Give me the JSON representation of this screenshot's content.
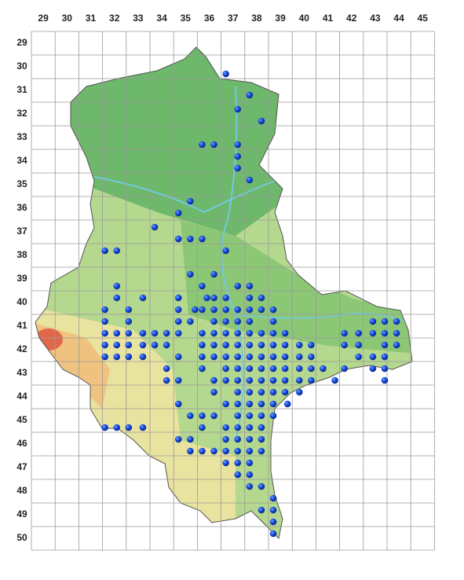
{
  "column_labels": [
    "29",
    "30",
    "31",
    "32",
    "33",
    "34",
    "35",
    "36",
    "37",
    "38",
    "39",
    "40",
    "41",
    "42",
    "43",
    "44",
    "45"
  ],
  "row_labels": [
    "29",
    "30",
    "31",
    "32",
    "33",
    "34",
    "35",
    "36",
    "37",
    "38",
    "39",
    "40",
    "41",
    "42",
    "43",
    "44",
    "45",
    "46",
    "47",
    "48",
    "49",
    "50"
  ],
  "points": [
    [
      37.2,
      30.8
    ],
    [
      38.2,
      31.7
    ],
    [
      37.7,
      32.3
    ],
    [
      38.7,
      32.8
    ],
    [
      36.2,
      33.8
    ],
    [
      36.7,
      33.8
    ],
    [
      37.7,
      33.8
    ],
    [
      37.7,
      34.3
    ],
    [
      37.7,
      34.8
    ],
    [
      38.2,
      35.3
    ],
    [
      35.7,
      36.2
    ],
    [
      35.2,
      36.7
    ],
    [
      34.2,
      37.3
    ],
    [
      35.2,
      37.8
    ],
    [
      35.7,
      37.8
    ],
    [
      36.2,
      37.8
    ],
    [
      32.1,
      38.3
    ],
    [
      32.6,
      38.3
    ],
    [
      37.2,
      38.3
    ],
    [
      35.7,
      39.3
    ],
    [
      36.7,
      39.3
    ],
    [
      32.6,
      39.8
    ],
    [
      36.2,
      39.8
    ],
    [
      37.7,
      39.8
    ],
    [
      38.2,
      39.8
    ],
    [
      32.6,
      40.3
    ],
    [
      33.7,
      40.3
    ],
    [
      35.2,
      40.3
    ],
    [
      36.4,
      40.3
    ],
    [
      36.7,
      40.3
    ],
    [
      37.2,
      40.3
    ],
    [
      38.2,
      40.3
    ],
    [
      38.7,
      40.3
    ],
    [
      32.1,
      40.8
    ],
    [
      33.1,
      40.8
    ],
    [
      35.2,
      40.8
    ],
    [
      35.9,
      40.8
    ],
    [
      36.2,
      40.8
    ],
    [
      36.7,
      40.8
    ],
    [
      37.2,
      40.8
    ],
    [
      37.7,
      40.8
    ],
    [
      38.2,
      40.8
    ],
    [
      38.7,
      40.8
    ],
    [
      39.2,
      40.8
    ],
    [
      32.1,
      41.3
    ],
    [
      33.1,
      41.3
    ],
    [
      35.2,
      41.3
    ],
    [
      35.7,
      41.3
    ],
    [
      36.7,
      41.3
    ],
    [
      37.2,
      41.3
    ],
    [
      37.7,
      41.3
    ],
    [
      38.2,
      41.3
    ],
    [
      39.2,
      41.3
    ],
    [
      43.4,
      41.3
    ],
    [
      43.9,
      41.3
    ],
    [
      44.4,
      41.3
    ],
    [
      32.1,
      41.8
    ],
    [
      32.6,
      41.8
    ],
    [
      33.1,
      41.8
    ],
    [
      33.7,
      41.8
    ],
    [
      34.2,
      41.8
    ],
    [
      34.7,
      41.8
    ],
    [
      35.2,
      41.8
    ],
    [
      36.2,
      41.8
    ],
    [
      36.7,
      41.8
    ],
    [
      37.2,
      41.8
    ],
    [
      37.7,
      41.8
    ],
    [
      38.2,
      41.8
    ],
    [
      38.7,
      41.8
    ],
    [
      39.2,
      41.8
    ],
    [
      39.7,
      41.8
    ],
    [
      42.2,
      41.8
    ],
    [
      42.8,
      41.8
    ],
    [
      43.4,
      41.8
    ],
    [
      43.9,
      41.8
    ],
    [
      44.4,
      41.8
    ],
    [
      32.1,
      42.3
    ],
    [
      32.6,
      42.3
    ],
    [
      33.1,
      42.3
    ],
    [
      33.7,
      42.3
    ],
    [
      34.2,
      42.3
    ],
    [
      34.7,
      42.3
    ],
    [
      36.2,
      42.3
    ],
    [
      36.7,
      42.3
    ],
    [
      37.2,
      42.3
    ],
    [
      37.7,
      42.3
    ],
    [
      38.2,
      42.3
    ],
    [
      38.7,
      42.3
    ],
    [
      39.2,
      42.3
    ],
    [
      39.7,
      42.3
    ],
    [
      40.3,
      42.3
    ],
    [
      40.8,
      42.3
    ],
    [
      42.2,
      42.3
    ],
    [
      42.8,
      42.3
    ],
    [
      43.9,
      42.3
    ],
    [
      44.4,
      42.3
    ],
    [
      32.1,
      42.8
    ],
    [
      32.6,
      42.8
    ],
    [
      33.1,
      42.8
    ],
    [
      33.7,
      42.8
    ],
    [
      35.2,
      42.8
    ],
    [
      36.2,
      42.8
    ],
    [
      36.7,
      42.8
    ],
    [
      37.2,
      42.8
    ],
    [
      37.7,
      42.8
    ],
    [
      38.2,
      42.8
    ],
    [
      38.7,
      42.8
    ],
    [
      39.2,
      42.8
    ],
    [
      39.7,
      42.8
    ],
    [
      40.3,
      42.8
    ],
    [
      40.8,
      42.8
    ],
    [
      42.8,
      42.8
    ],
    [
      43.4,
      42.8
    ],
    [
      43.9,
      42.8
    ],
    [
      34.7,
      43.3
    ],
    [
      36.2,
      43.3
    ],
    [
      37.2,
      43.3
    ],
    [
      37.7,
      43.3
    ],
    [
      38.2,
      43.3
    ],
    [
      38.7,
      43.3
    ],
    [
      39.2,
      43.3
    ],
    [
      39.7,
      43.3
    ],
    [
      40.3,
      43.3
    ],
    [
      40.8,
      43.3
    ],
    [
      41.3,
      43.3
    ],
    [
      42.2,
      43.3
    ],
    [
      43.4,
      43.3
    ],
    [
      43.9,
      43.3
    ],
    [
      34.7,
      43.8
    ],
    [
      35.2,
      43.8
    ],
    [
      36.7,
      43.8
    ],
    [
      37.2,
      43.8
    ],
    [
      37.7,
      43.8
    ],
    [
      38.2,
      43.8
    ],
    [
      38.7,
      43.8
    ],
    [
      39.2,
      43.8
    ],
    [
      39.7,
      43.8
    ],
    [
      40.3,
      43.8
    ],
    [
      40.8,
      43.8
    ],
    [
      41.8,
      43.8
    ],
    [
      43.9,
      43.8
    ],
    [
      36.7,
      44.3
    ],
    [
      37.7,
      44.3
    ],
    [
      38.2,
      44.3
    ],
    [
      38.7,
      44.3
    ],
    [
      39.2,
      44.3
    ],
    [
      39.7,
      44.3
    ],
    [
      40.3,
      44.3
    ],
    [
      35.2,
      44.8
    ],
    [
      37.2,
      44.8
    ],
    [
      37.7,
      44.8
    ],
    [
      38.2,
      44.8
    ],
    [
      38.7,
      44.8
    ],
    [
      39.2,
      44.8
    ],
    [
      39.8,
      44.8
    ],
    [
      35.7,
      45.3
    ],
    [
      36.2,
      45.3
    ],
    [
      36.7,
      45.3
    ],
    [
      37.7,
      45.3
    ],
    [
      38.2,
      45.3
    ],
    [
      38.7,
      45.3
    ],
    [
      39.2,
      45.3
    ],
    [
      32.1,
      45.8
    ],
    [
      32.6,
      45.8
    ],
    [
      33.1,
      45.8
    ],
    [
      33.7,
      45.8
    ],
    [
      36.2,
      45.8
    ],
    [
      37.2,
      45.8
    ],
    [
      37.7,
      45.8
    ],
    [
      38.2,
      45.8
    ],
    [
      38.7,
      45.8
    ],
    [
      35.2,
      46.3
    ],
    [
      35.7,
      46.3
    ],
    [
      37.2,
      46.3
    ],
    [
      37.7,
      46.3
    ],
    [
      38.2,
      46.3
    ],
    [
      38.7,
      46.3
    ],
    [
      35.7,
      46.8
    ],
    [
      36.2,
      46.8
    ],
    [
      36.7,
      46.8
    ],
    [
      37.2,
      46.8
    ],
    [
      37.7,
      46.8
    ],
    [
      38.2,
      46.8
    ],
    [
      38.7,
      46.8
    ],
    [
      37.2,
      47.3
    ],
    [
      37.7,
      47.3
    ],
    [
      38.2,
      47.3
    ],
    [
      37.7,
      47.8
    ],
    [
      38.2,
      47.8
    ],
    [
      38.2,
      48.3
    ],
    [
      38.7,
      48.3
    ],
    [
      39.2,
      48.8
    ],
    [
      38.7,
      49.3
    ],
    [
      39.2,
      49.3
    ],
    [
      39.2,
      49.8
    ],
    [
      39.2,
      50.3
    ]
  ]
}
